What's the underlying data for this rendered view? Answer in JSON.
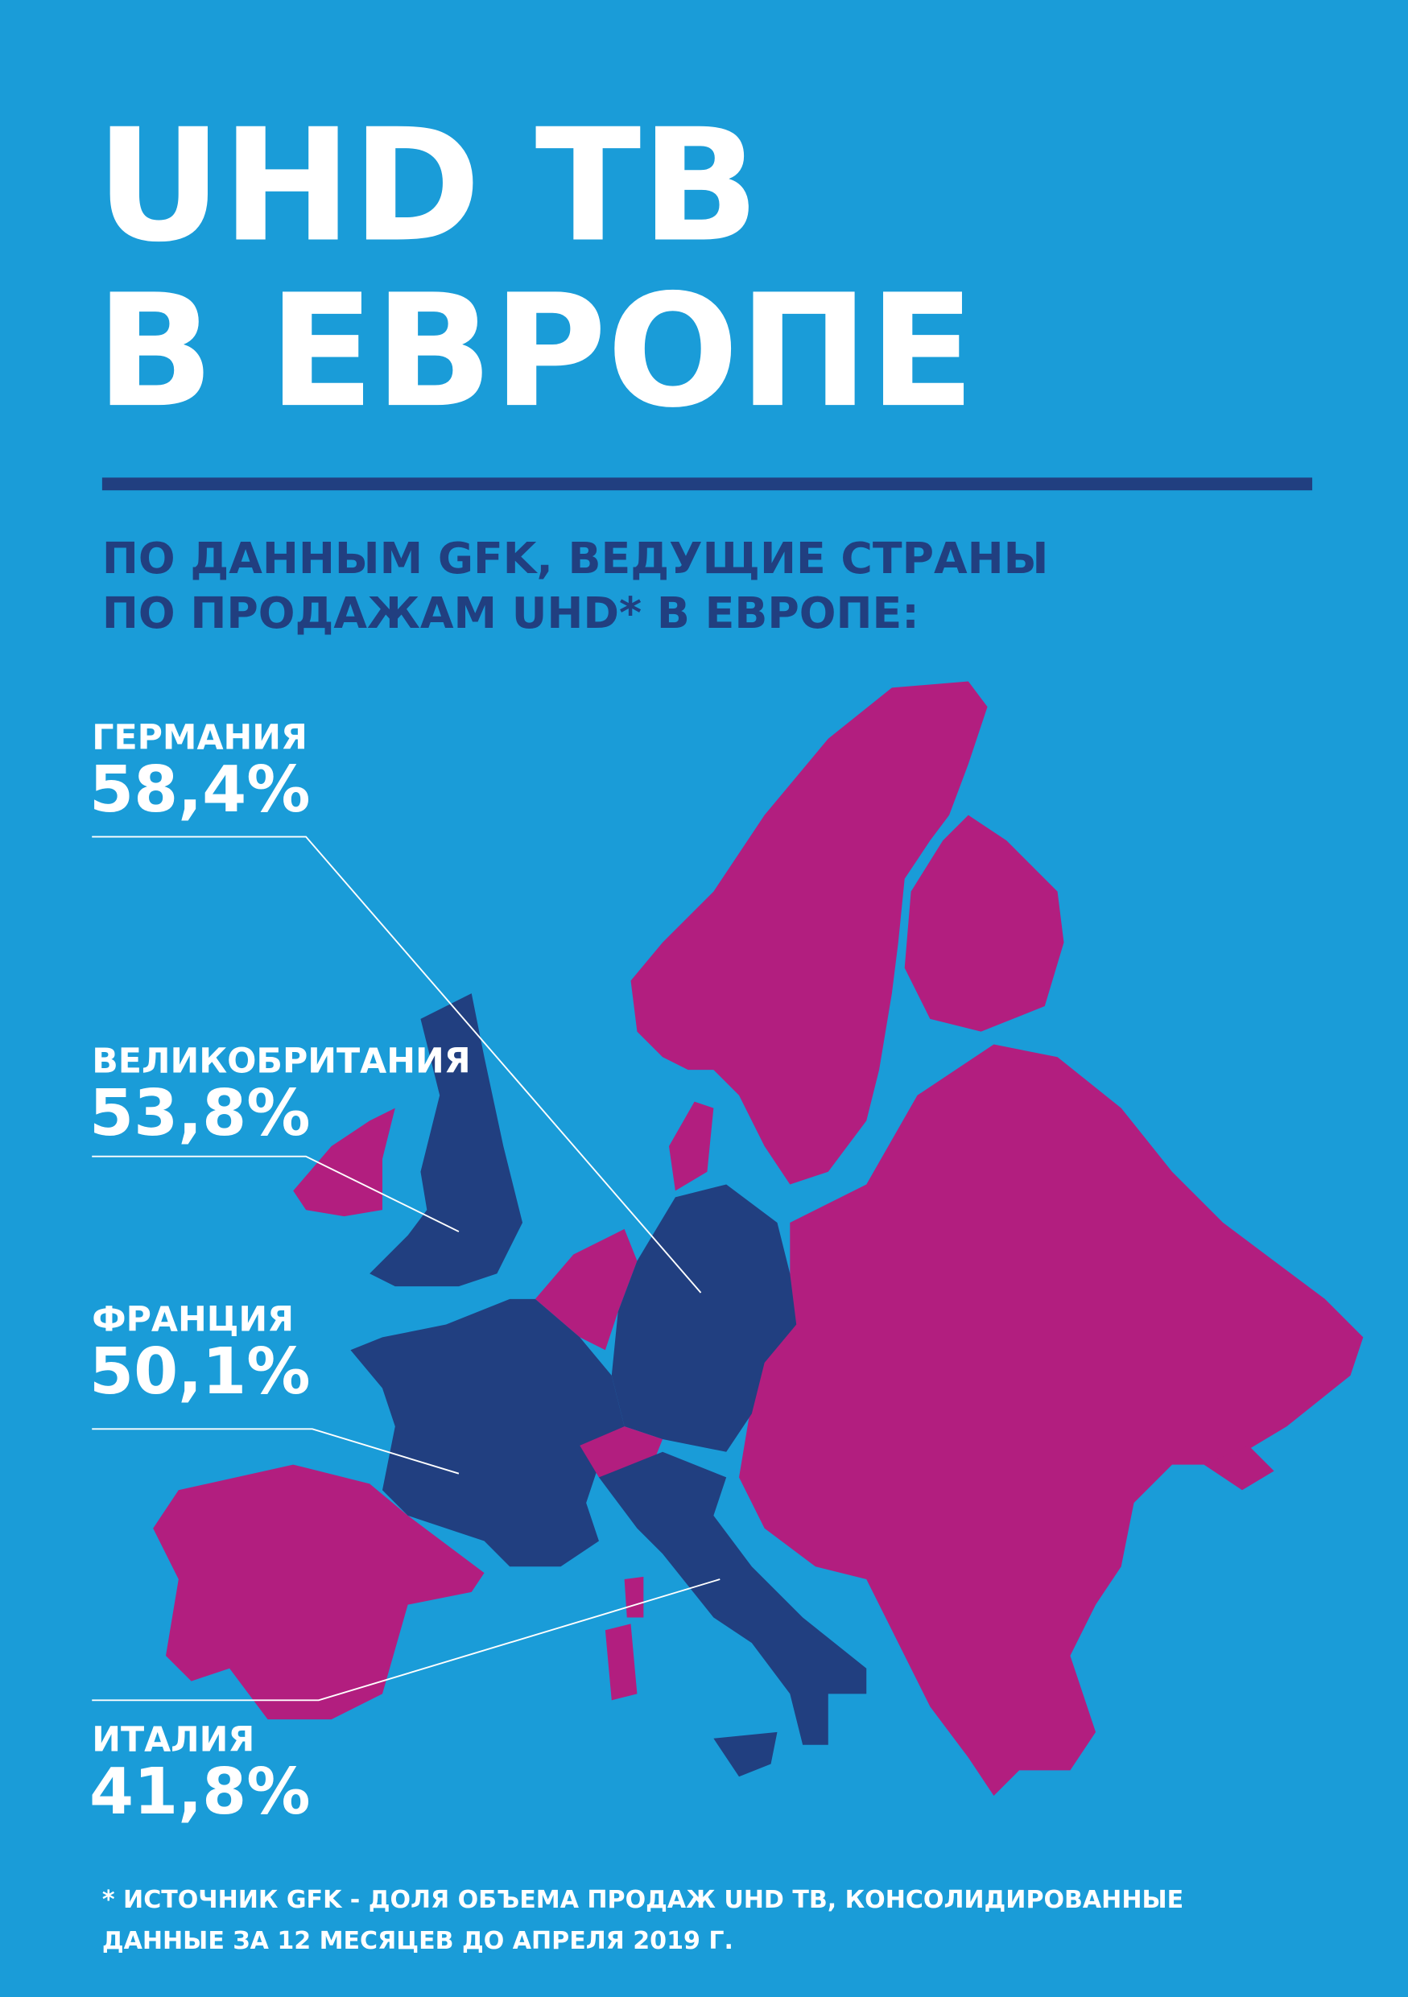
{
  "header": {
    "title_lines": [
      "UHD ТВ",
      "В ЕВРОПЕ"
    ],
    "subtitle_lines": [
      "ПО ДАННЫМ GFK, ВЕДУЩИЕ СТРАНЫ",
      "ПО ПРОДАЖАМ UHD* В ЕВРОПЕ:"
    ]
  },
  "countries": [
    {
      "name": "ГЕРМАНИЯ",
      "share": "58,4%"
    },
    {
      "name": "ВЕЛИКОБРИТАНИЯ",
      "share": "53,8%"
    },
    {
      "name": "ФРАНЦИЯ",
      "share": "50,1%"
    },
    {
      "name": "ИТАЛИЯ",
      "share": "41,8%"
    }
  ],
  "footnote_lines": [
    "* ИСТОЧНИК GFK - ДОЛЯ ОБЪЕМА ПРОДАЖ UHD ТВ, КОНСОЛИДИРОВАННЫЕ",
    "ДАННЫЕ ЗА 12 МЕСЯЦЕВ ДО АПРЕЛЯ 2019 Г."
  ]
}
